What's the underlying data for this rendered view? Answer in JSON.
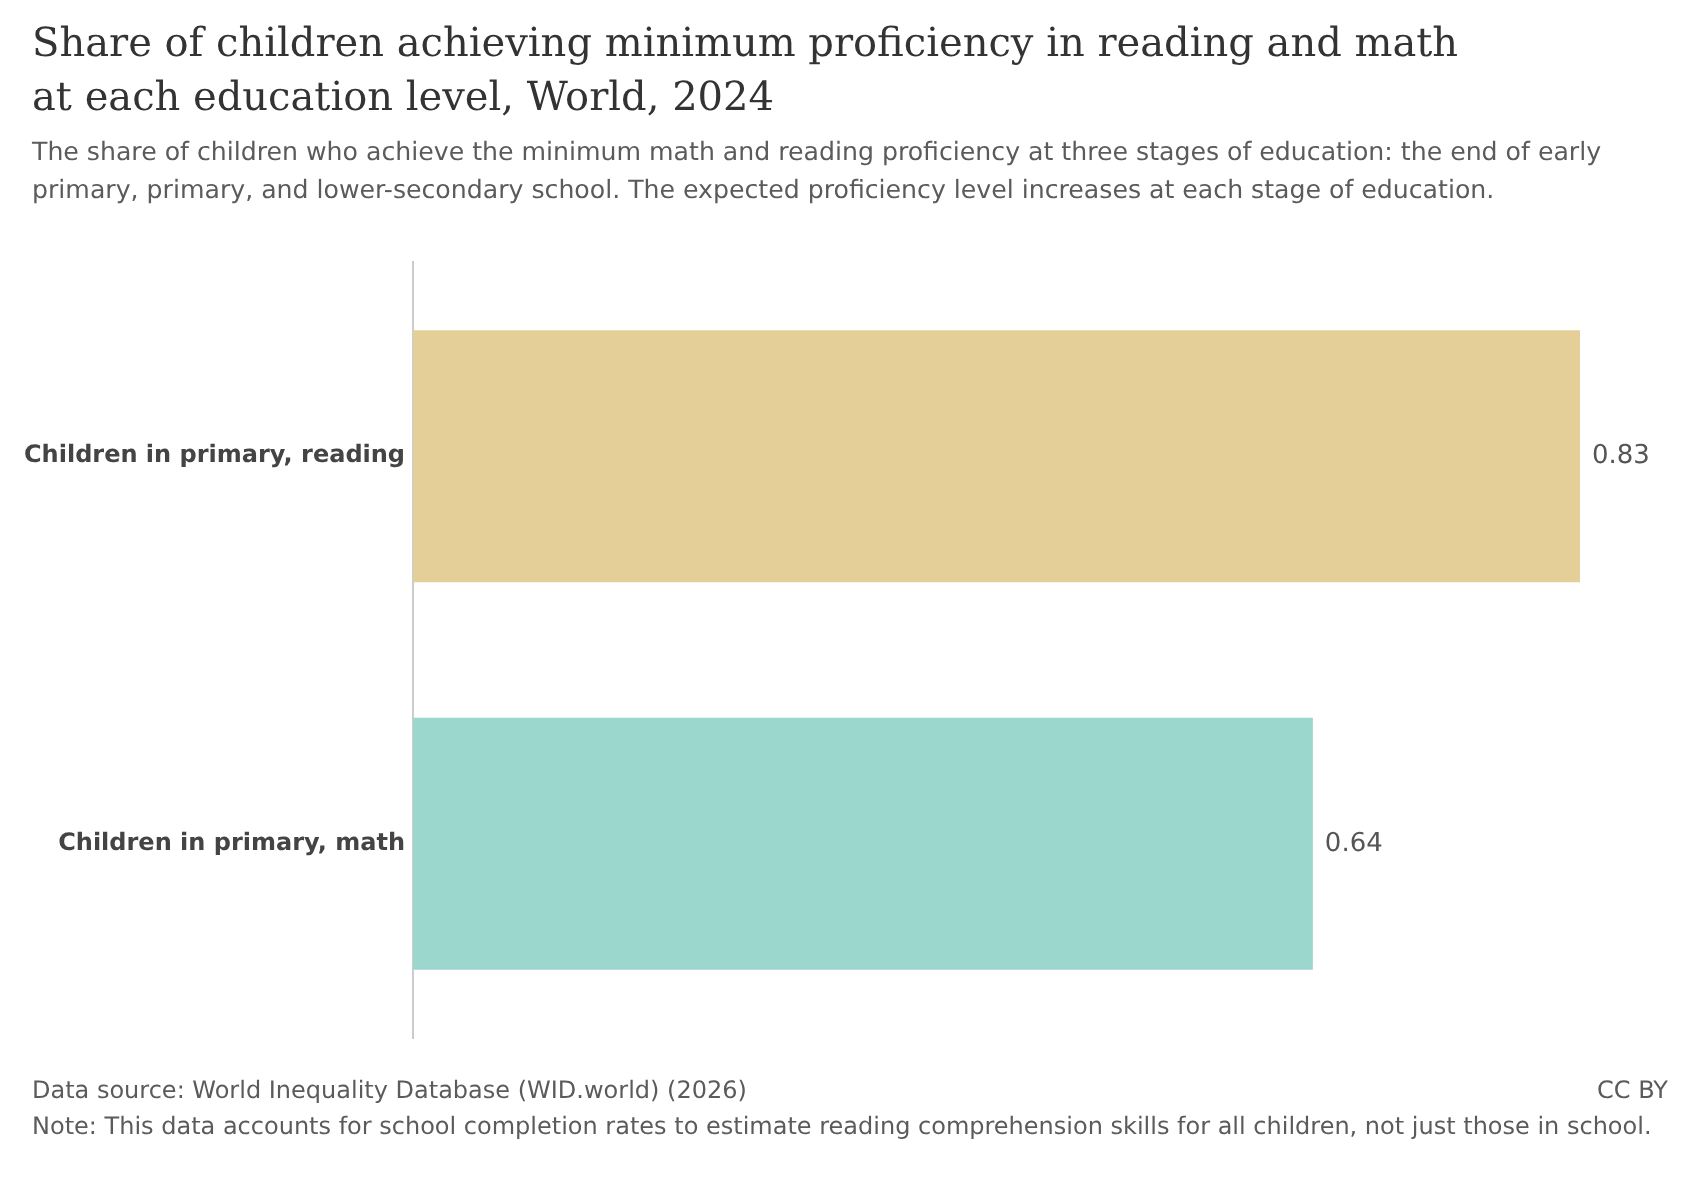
{
  "chart_data": {
    "type": "bar",
    "orientation": "horizontal",
    "title": "Share of children achieving minimum proficiency in reading and math at each education level, World, 2024",
    "subtitle": "The share of children who achieve the minimum math and reading proficiency at three stages of education: the end of early primary, primary, and lower-secondary school. The expected proficiency level increases at each stage of education.",
    "categories": [
      "Children in primary, reading",
      "Children in primary, math"
    ],
    "values": [
      0.83,
      0.64
    ],
    "colors": [
      "#e5cf98",
      "#9bd7cd"
    ],
    "data_labels": true,
    "annotations": [
      "Data source: World Inequality Database (WID.world) (2026)",
      "CC BY",
      "Note: This data accounts for school completion rates to estimate reading comprehension skills for all children, not just those in school."
    ]
  }
}
